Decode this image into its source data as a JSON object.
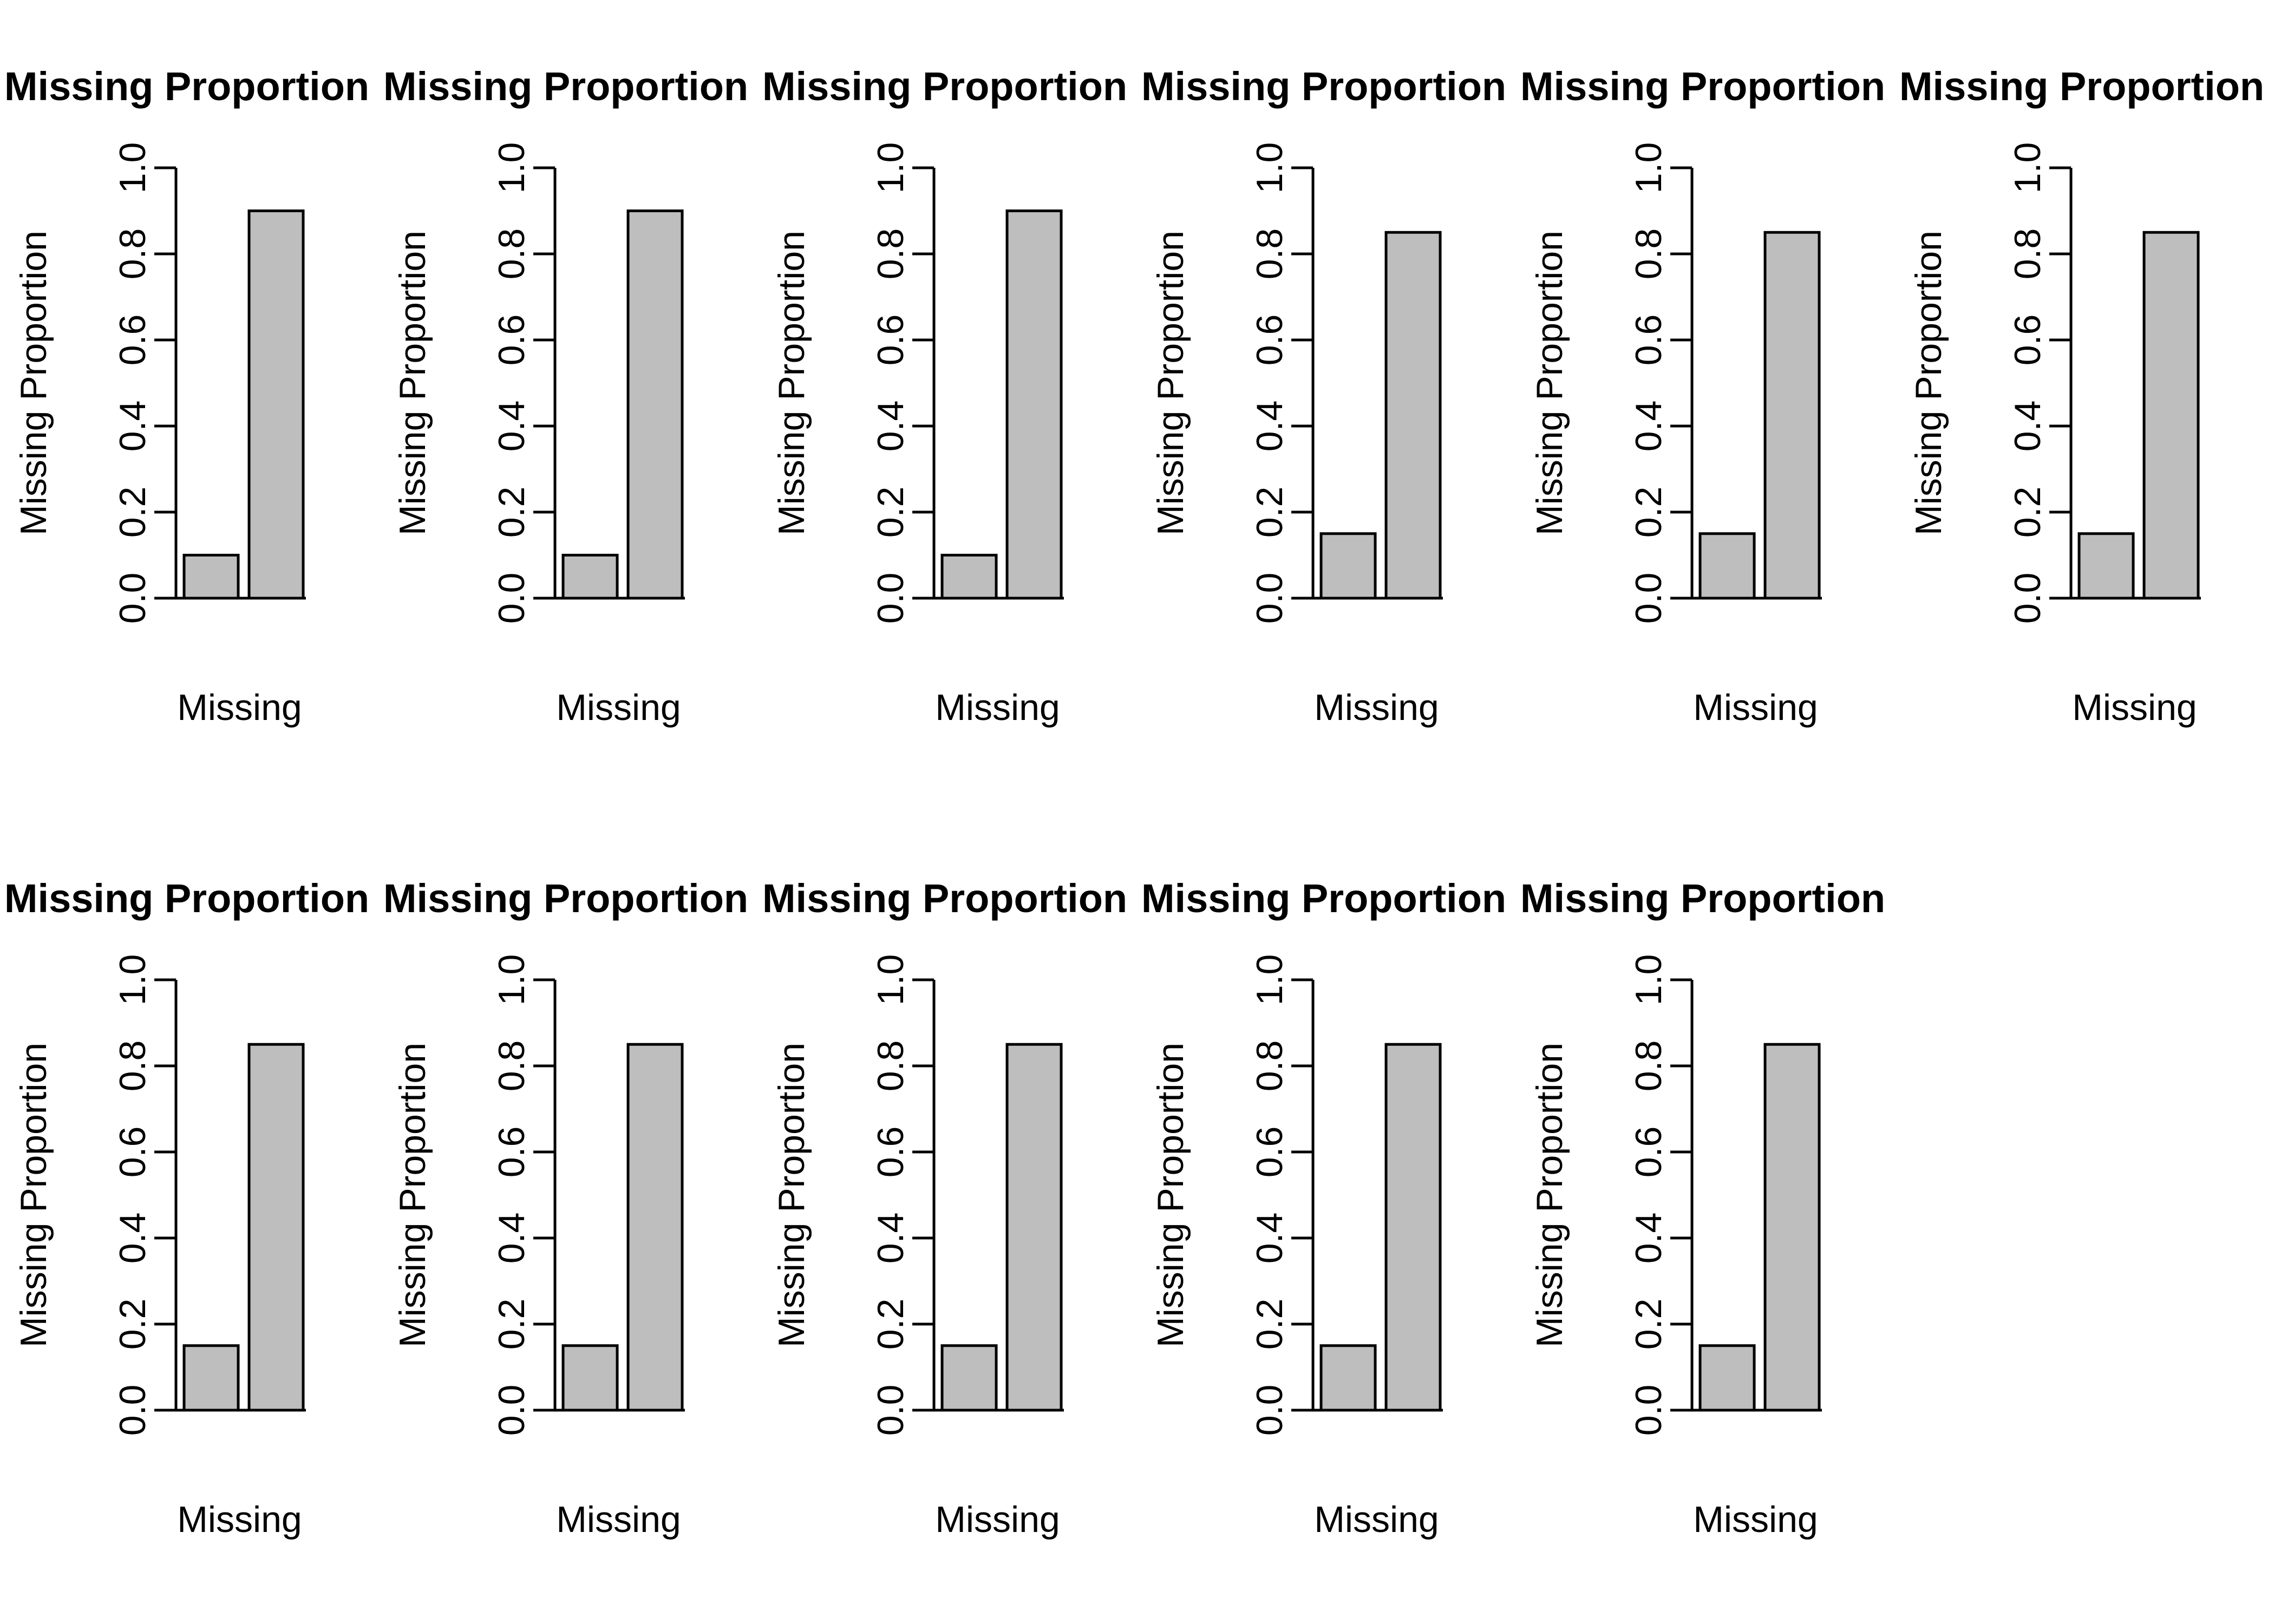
{
  "page": {
    "background": "#ffffff",
    "text_color": "#000000"
  },
  "grid": {
    "rows": 2,
    "columns": 6,
    "panel_count": 11,
    "note_row2_last_cell": "empty"
  },
  "shared_style": {
    "bar_fill": "#BEBEBE",
    "bar_stroke": "#000000",
    "axis_color": "#000000"
  },
  "chart_data": [
    {
      "type": "bar",
      "row": 1,
      "col": 1,
      "title": "Missing Proportion",
      "ylabel": "Missing Proportion",
      "xlabel": "Missing",
      "categories": [
        "",
        ""
      ],
      "values": [
        0.1,
        0.9
      ],
      "ylim": [
        0,
        1
      ],
      "yticks": [
        "0.0",
        "0.2",
        "0.4",
        "0.6",
        "0.8",
        "1.0"
      ],
      "grid": false,
      "legend": "none",
      "bar_fill": "#BEBEBE",
      "bar_stroke": "#000000"
    },
    {
      "type": "bar",
      "row": 1,
      "col": 2,
      "title": "Missing Proportion",
      "ylabel": "Missing Proportion",
      "xlabel": "Missing",
      "categories": [
        "",
        ""
      ],
      "values": [
        0.1,
        0.9
      ],
      "ylim": [
        0,
        1
      ],
      "yticks": [
        "0.0",
        "0.2",
        "0.4",
        "0.6",
        "0.8",
        "1.0"
      ],
      "grid": false,
      "legend": "none",
      "bar_fill": "#BEBEBE",
      "bar_stroke": "#000000"
    },
    {
      "type": "bar",
      "row": 1,
      "col": 3,
      "title": "Missing Proportion",
      "ylabel": "Missing Proportion",
      "xlabel": "Missing",
      "categories": [
        "",
        ""
      ],
      "values": [
        0.1,
        0.9
      ],
      "ylim": [
        0,
        1
      ],
      "yticks": [
        "0.0",
        "0.2",
        "0.4",
        "0.6",
        "0.8",
        "1.0"
      ],
      "grid": false,
      "legend": "none",
      "bar_fill": "#BEBEBE",
      "bar_stroke": "#000000"
    },
    {
      "type": "bar",
      "row": 1,
      "col": 4,
      "title": "Missing Proportion",
      "ylabel": "Missing Proportion",
      "xlabel": "Missing",
      "categories": [
        "",
        ""
      ],
      "values": [
        0.15,
        0.85
      ],
      "ylim": [
        0,
        1
      ],
      "yticks": [
        "0.0",
        "0.2",
        "0.4",
        "0.6",
        "0.8",
        "1.0"
      ],
      "grid": false,
      "legend": "none",
      "bar_fill": "#BEBEBE",
      "bar_stroke": "#000000"
    },
    {
      "type": "bar",
      "row": 1,
      "col": 5,
      "title": "Missing Proportion",
      "ylabel": "Missing Proportion",
      "xlabel": "Missing",
      "categories": [
        "",
        ""
      ],
      "values": [
        0.15,
        0.85
      ],
      "ylim": [
        0,
        1
      ],
      "yticks": [
        "0.0",
        "0.2",
        "0.4",
        "0.6",
        "0.8",
        "1.0"
      ],
      "grid": false,
      "legend": "none",
      "bar_fill": "#BEBEBE",
      "bar_stroke": "#000000"
    },
    {
      "type": "bar",
      "row": 1,
      "col": 6,
      "title": "Missing Proportion",
      "ylabel": "Missing Proportion",
      "xlabel": "Missing",
      "categories": [
        "",
        ""
      ],
      "values": [
        0.15,
        0.85
      ],
      "ylim": [
        0,
        1
      ],
      "yticks": [
        "0.0",
        "0.2",
        "0.4",
        "0.6",
        "0.8",
        "1.0"
      ],
      "grid": false,
      "legend": "none",
      "bar_fill": "#BEBEBE",
      "bar_stroke": "#000000"
    },
    {
      "type": "bar",
      "row": 2,
      "col": 1,
      "title": "Missing Proportion",
      "ylabel": "Missing Proportion",
      "xlabel": "Missing",
      "categories": [
        "",
        ""
      ],
      "values": [
        0.15,
        0.85
      ],
      "ylim": [
        0,
        1
      ],
      "yticks": [
        "0.0",
        "0.2",
        "0.4",
        "0.6",
        "0.8",
        "1.0"
      ],
      "grid": false,
      "legend": "none",
      "bar_fill": "#BEBEBE",
      "bar_stroke": "#000000"
    },
    {
      "type": "bar",
      "row": 2,
      "col": 2,
      "title": "Missing Proportion",
      "ylabel": "Missing Proportion",
      "xlabel": "Missing",
      "categories": [
        "",
        ""
      ],
      "values": [
        0.15,
        0.85
      ],
      "ylim": [
        0,
        1
      ],
      "yticks": [
        "0.0",
        "0.2",
        "0.4",
        "0.6",
        "0.8",
        "1.0"
      ],
      "grid": false,
      "legend": "none",
      "bar_fill": "#BEBEBE",
      "bar_stroke": "#000000"
    },
    {
      "type": "bar",
      "row": 2,
      "col": 3,
      "title": "Missing Proportion",
      "ylabel": "Missing Proportion",
      "xlabel": "Missing",
      "categories": [
        "",
        ""
      ],
      "values": [
        0.15,
        0.85
      ],
      "ylim": [
        0,
        1
      ],
      "yticks": [
        "0.0",
        "0.2",
        "0.4",
        "0.6",
        "0.8",
        "1.0"
      ],
      "grid": false,
      "legend": "none",
      "bar_fill": "#BEBEBE",
      "bar_stroke": "#000000"
    },
    {
      "type": "bar",
      "row": 2,
      "col": 4,
      "title": "Missing Proportion",
      "ylabel": "Missing Proportion",
      "xlabel": "Missing",
      "categories": [
        "",
        ""
      ],
      "values": [
        0.15,
        0.85
      ],
      "ylim": [
        0,
        1
      ],
      "yticks": [
        "0.0",
        "0.2",
        "0.4",
        "0.6",
        "0.8",
        "1.0"
      ],
      "grid": false,
      "legend": "none",
      "bar_fill": "#BEBEBE",
      "bar_stroke": "#000000"
    },
    {
      "type": "bar",
      "row": 2,
      "col": 5,
      "title": "Missing Proportion",
      "ylabel": "Missing Proportion",
      "xlabel": "Missing",
      "categories": [
        "",
        ""
      ],
      "values": [
        0.15,
        0.85
      ],
      "ylim": [
        0,
        1
      ],
      "yticks": [
        "0.0",
        "0.2",
        "0.4",
        "0.6",
        "0.8",
        "1.0"
      ],
      "grid": false,
      "legend": "none",
      "bar_fill": "#BEBEBE",
      "bar_stroke": "#000000"
    }
  ]
}
